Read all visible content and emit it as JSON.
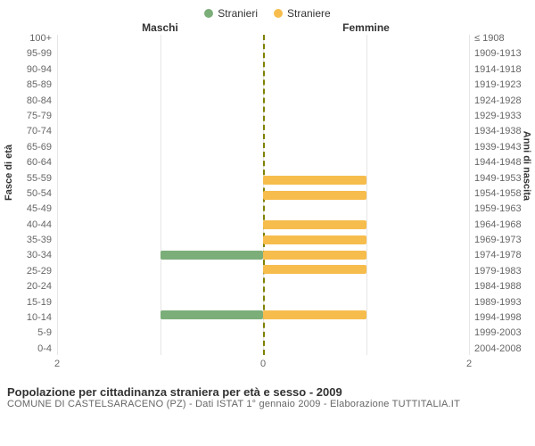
{
  "legend": {
    "male": {
      "label": "Stranieri",
      "color": "#7cae7a"
    },
    "female": {
      "label": "Straniere",
      "color": "#f6bd4d"
    }
  },
  "columns": {
    "left": "Maschi",
    "right": "Femmine"
  },
  "axis": {
    "left_title": "Fasce di età",
    "right_title": "Anni di nascita"
  },
  "xaxis": {
    "max": 2,
    "ticks": [
      2,
      0,
      2
    ]
  },
  "colors": {
    "grid": "#e6e6e6",
    "center_line": "#808000",
    "text": "#333333",
    "text_muted": "#666666",
    "background": "#ffffff"
  },
  "rows": [
    {
      "age": "100+",
      "birth": "≤ 1908",
      "m": 0,
      "f": 0
    },
    {
      "age": "95-99",
      "birth": "1909-1913",
      "m": 0,
      "f": 0
    },
    {
      "age": "90-94",
      "birth": "1914-1918",
      "m": 0,
      "f": 0
    },
    {
      "age": "85-89",
      "birth": "1919-1923",
      "m": 0,
      "f": 0
    },
    {
      "age": "80-84",
      "birth": "1924-1928",
      "m": 0,
      "f": 0
    },
    {
      "age": "75-79",
      "birth": "1929-1933",
      "m": 0,
      "f": 0
    },
    {
      "age": "70-74",
      "birth": "1934-1938",
      "m": 0,
      "f": 0
    },
    {
      "age": "65-69",
      "birth": "1939-1943",
      "m": 0,
      "f": 0
    },
    {
      "age": "60-64",
      "birth": "1944-1948",
      "m": 0,
      "f": 0
    },
    {
      "age": "55-59",
      "birth": "1949-1953",
      "m": 0,
      "f": 1
    },
    {
      "age": "50-54",
      "birth": "1954-1958",
      "m": 0,
      "f": 1
    },
    {
      "age": "45-49",
      "birth": "1959-1963",
      "m": 0,
      "f": 0
    },
    {
      "age": "40-44",
      "birth": "1964-1968",
      "m": 0,
      "f": 1
    },
    {
      "age": "35-39",
      "birth": "1969-1973",
      "m": 0,
      "f": 1
    },
    {
      "age": "30-34",
      "birth": "1974-1978",
      "m": 1,
      "f": 1
    },
    {
      "age": "25-29",
      "birth": "1979-1983",
      "m": 0,
      "f": 1
    },
    {
      "age": "20-24",
      "birth": "1984-1988",
      "m": 0,
      "f": 0
    },
    {
      "age": "15-19",
      "birth": "1989-1993",
      "m": 0,
      "f": 0
    },
    {
      "age": "10-14",
      "birth": "1994-1998",
      "m": 1,
      "f": 1
    },
    {
      "age": "5-9",
      "birth": "1999-2003",
      "m": 0,
      "f": 0
    },
    {
      "age": "0-4",
      "birth": "2004-2008",
      "m": 0,
      "f": 0
    }
  ],
  "footer": {
    "title": "Popolazione per cittadinanza straniera per età e sesso - 2009",
    "subtitle": "COMUNE DI CASTELSARACENO (PZ) - Dati ISTAT 1° gennaio 2009 - Elaborazione TUTTITALIA.IT"
  }
}
